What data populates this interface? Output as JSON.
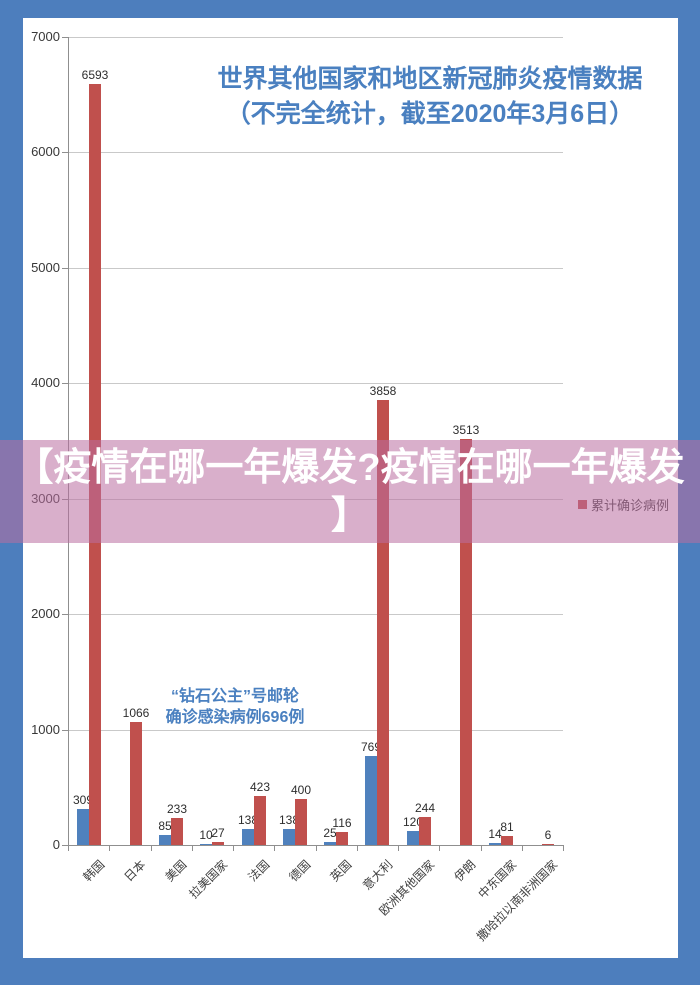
{
  "frame": {
    "background_color": "#4d7ebd",
    "panel_color": "#ffffff"
  },
  "title": {
    "line1": "世界其他国家和地区新冠肺炎疫情数据",
    "line2": "（不完全统计，截至2020年3月6日）",
    "color": "#4a80c0"
  },
  "annotation": {
    "line1": "“钻石公主”号邮轮",
    "line2": "确诊感染病例696例",
    "color": "#4a80c0"
  },
  "overlay": {
    "line1": "【疫情在哪一年爆发?疫情在哪一年爆发",
    "line2": "】",
    "band_color": "rgba(186,110,160,0.55)",
    "text_color": "#ffffff"
  },
  "legend": {
    "label": "累计确诊病例",
    "swatch_color": "#c0504d"
  },
  "chart_data": {
    "type": "bar",
    "title": "世界其他国家和地区新冠肺炎疫情数据（不完全统计，截至2020年3月6日）",
    "categories": [
      "韩国",
      "日本",
      "美国",
      "拉美国家",
      "法国",
      "德国",
      "英国",
      "意大利",
      "欧洲其他国家",
      "伊朗",
      "中东国家",
      "撒哈拉以南非洲国家"
    ],
    "series": [
      {
        "name": "",
        "color": "#4f81bd",
        "values": [
          309,
          null,
          85,
          10,
          138,
          138,
          25,
          769,
          120,
          null,
          14,
          null
        ]
      },
      {
        "name": "累计确诊病例",
        "color": "#c0504d",
        "values": [
          6593,
          1066,
          233,
          27,
          423,
          400,
          116,
          3858,
          244,
          3513,
          81,
          6
        ]
      }
    ],
    "xlabel": "",
    "ylabel": "",
    "ylim": [
      0,
      7000
    ],
    "ytick_interval": 1000,
    "grid": true,
    "legend_position": "right"
  }
}
